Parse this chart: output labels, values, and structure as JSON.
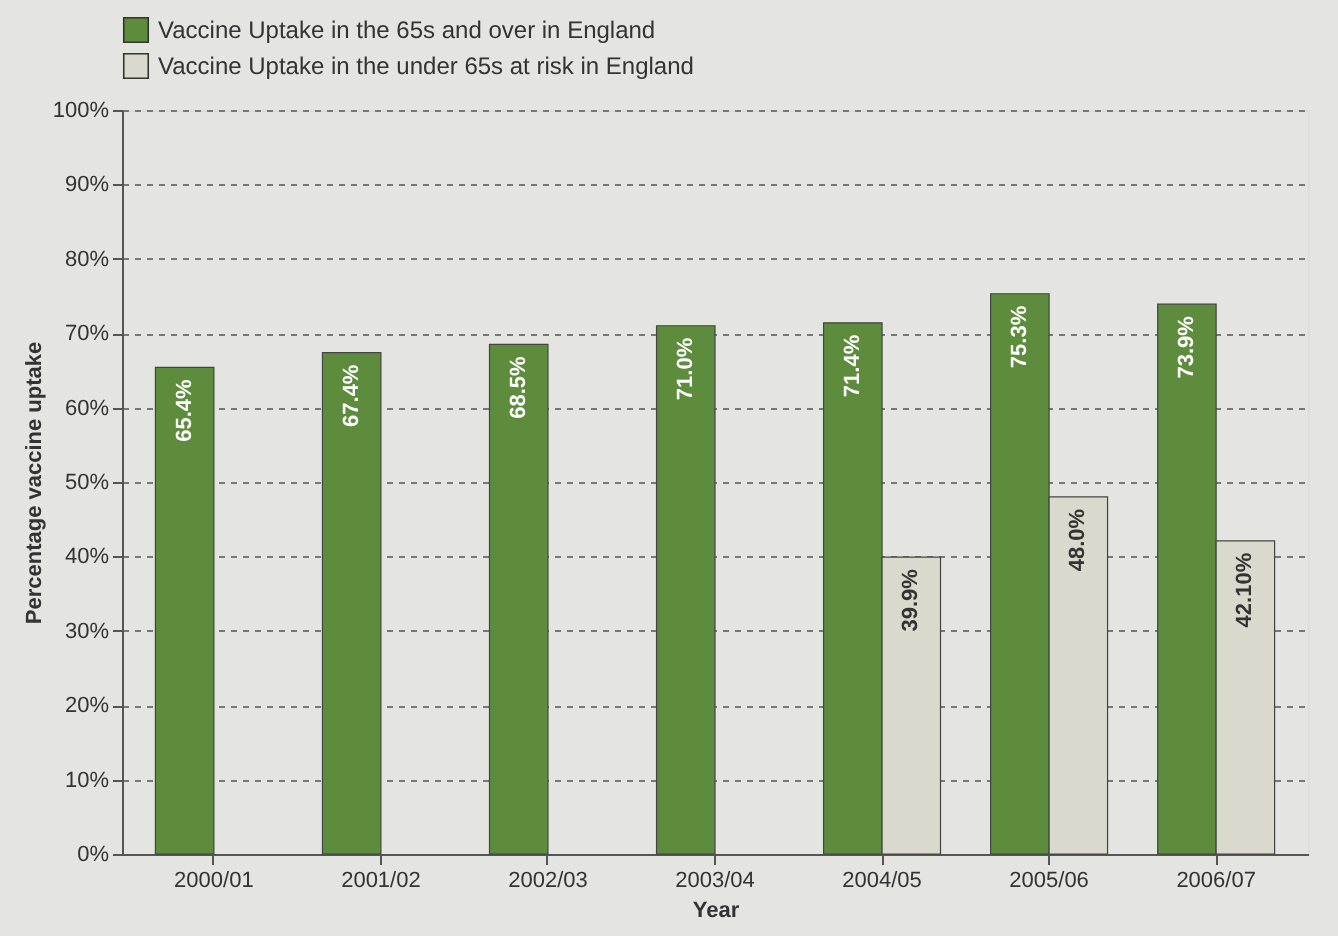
{
  "chart_data": {
    "type": "bar",
    "xlabel": "Year",
    "ylabel": "Percentage vaccine uptake",
    "categories": [
      "2000/01",
      "2001/02",
      "2002/03",
      "2003/04",
      "2004/05",
      "2005/06",
      "2006/07"
    ],
    "series": [
      {
        "name": "Vaccine Uptake in the 65s and over in England",
        "color": "#5c8c3c",
        "values": [
          65.4,
          67.4,
          68.5,
          71.0,
          71.4,
          75.3,
          73.9
        ],
        "value_labels": [
          "65.4%",
          "67.4%",
          "68.5%",
          "71.0%",
          "71.4%",
          "75.3%",
          "73.9%"
        ]
      },
      {
        "name": "Vaccine Uptake in the under 65s at risk in England",
        "color": "#d9dacd",
        "values": [
          null,
          null,
          null,
          null,
          39.9,
          48.0,
          42.1
        ],
        "value_labels": [
          null,
          null,
          null,
          null,
          "39.9%",
          "48.0%",
          "42.10%"
        ]
      }
    ],
    "ylim": [
      0,
      100
    ],
    "yticks": [
      {
        "value": 0,
        "label": "0%"
      },
      {
        "value": 10,
        "label": "10%"
      },
      {
        "value": 20,
        "label": "20%"
      },
      {
        "value": 30,
        "label": "30%"
      },
      {
        "value": 40,
        "label": "40%"
      },
      {
        "value": 50,
        "label": "50%"
      },
      {
        "value": 60,
        "label": "60%"
      },
      {
        "value": 70,
        "label": "70%"
      },
      {
        "value": 80,
        "label": "80%"
      },
      {
        "value": 90,
        "label": "90%"
      },
      {
        "value": 100,
        "label": "100%"
      }
    ],
    "grid": "y",
    "legend": "top left"
  }
}
